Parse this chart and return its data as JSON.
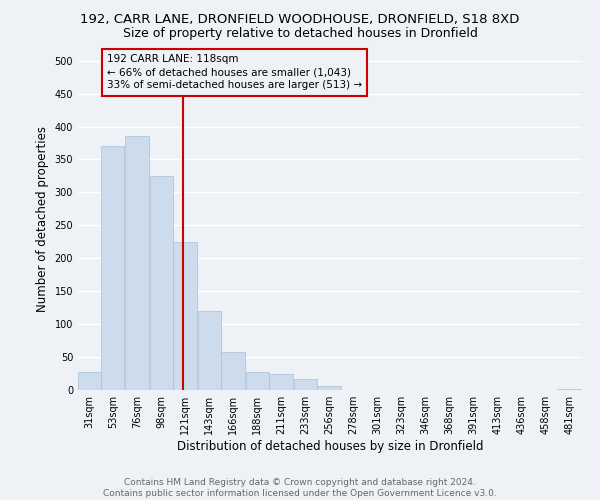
{
  "title": "192, CARR LANE, DRONFIELD WOODHOUSE, DRONFIELD, S18 8XD",
  "subtitle": "Size of property relative to detached houses in Dronfield",
  "xlabel": "Distribution of detached houses by size in Dronfield",
  "ylabel": "Number of detached properties",
  "footer_line1": "Contains HM Land Registry data © Crown copyright and database right 2024.",
  "footer_line2": "Contains public sector information licensed under the Open Government Licence v3.0.",
  "bar_color": "#ccdcec",
  "bar_edge_color": "#aac0d8",
  "annotation_line_color": "#cc0000",
  "annotation_box_color": "#cc0000",
  "annotation_text": "192 CARR LANE: 118sqm\n← 66% of detached houses are smaller (1,043)\n33% of semi-detached houses are larger (513) →",
  "property_sqm": 118,
  "categories": [
    "31sqm",
    "53sqm",
    "76sqm",
    "98sqm",
    "121sqm",
    "143sqm",
    "166sqm",
    "188sqm",
    "211sqm",
    "233sqm",
    "256sqm",
    "278sqm",
    "301sqm",
    "323sqm",
    "346sqm",
    "368sqm",
    "391sqm",
    "413sqm",
    "436sqm",
    "458sqm",
    "481sqm"
  ],
  "bin_edges": [
    20,
    42,
    64,
    87,
    109,
    132,
    154,
    177,
    199,
    222,
    244,
    267,
    289,
    312,
    334,
    357,
    379,
    402,
    424,
    447,
    469,
    492
  ],
  "values": [
    27,
    370,
    385,
    325,
    225,
    120,
    58,
    28,
    24,
    16,
    6,
    0,
    0,
    0,
    0,
    0,
    0,
    0,
    0,
    0,
    2
  ],
  "ylim": [
    0,
    520
  ],
  "yticks": [
    0,
    50,
    100,
    150,
    200,
    250,
    300,
    350,
    400,
    450,
    500
  ],
  "background_color": "#eef2f7",
  "grid_color": "white",
  "title_fontsize": 9.5,
  "subtitle_fontsize": 9,
  "axis_label_fontsize": 8.5,
  "tick_fontsize": 7,
  "footer_fontsize": 6.5
}
